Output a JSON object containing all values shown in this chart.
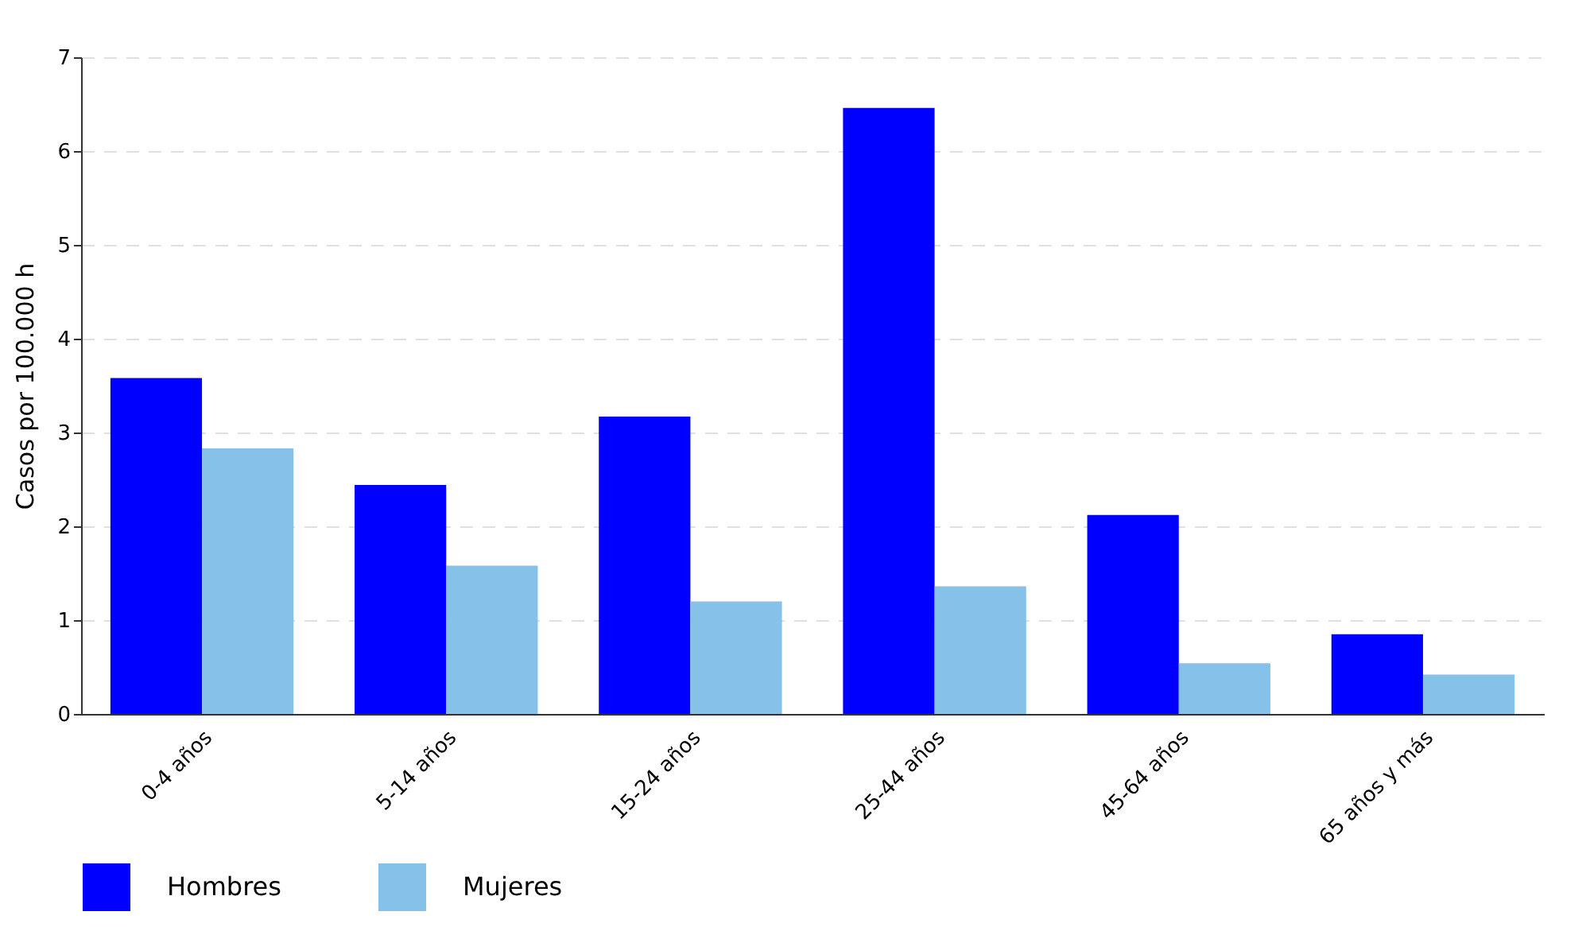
{
  "chart_data": {
    "type": "bar",
    "ylabel": "Casos por 100.000 h",
    "categories": [
      "0-4 años",
      "5-14 años",
      "15-24 años",
      "25-44 años",
      "45-64 años",
      "65 años y más"
    ],
    "series": [
      {
        "name": "Hombres",
        "color": "#0000ff",
        "values": [
          3.58,
          2.44,
          3.17,
          6.46,
          2.12,
          0.85
        ]
      },
      {
        "name": "Mujeres",
        "color": "#85c1e9",
        "values": [
          2.83,
          1.58,
          1.2,
          1.36,
          0.54,
          0.42
        ]
      }
    ],
    "ylim": [
      0,
      7
    ],
    "yticks": [
      0,
      1,
      2,
      3,
      4,
      5,
      6,
      7
    ],
    "grid": "y",
    "legend": "bottom"
  }
}
